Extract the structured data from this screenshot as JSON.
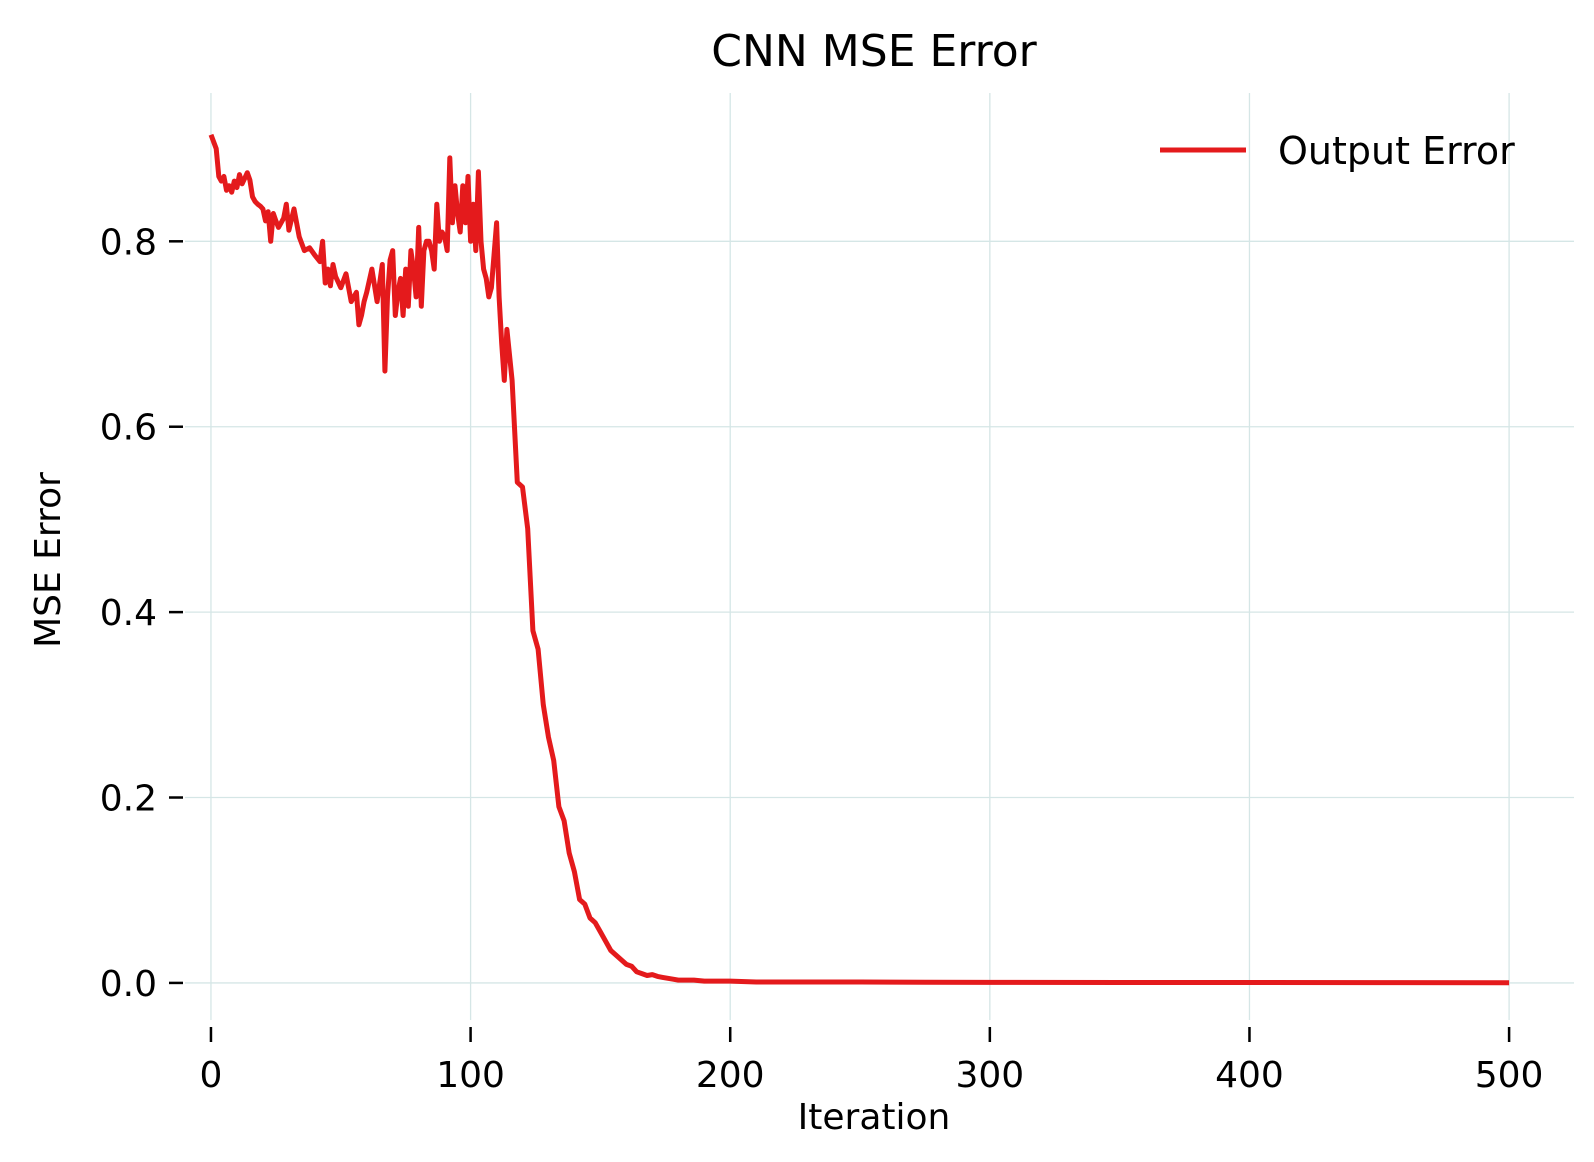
{
  "chart_data": {
    "type": "line",
    "title": "CNN MSE Error",
    "xlabel": "Iteration",
    "ylabel": "MSE Error",
    "xlim": [
      -10,
      525
    ],
    "ylim": [
      -0.04,
      0.96
    ],
    "xticks": [
      0,
      100,
      200,
      300,
      400,
      500
    ],
    "yticks": [
      0.0,
      0.2,
      0.4,
      0.6,
      0.8
    ],
    "ytick_labels": [
      "0.0",
      "0.2",
      "0.4",
      "0.6",
      "0.8"
    ],
    "grid": true,
    "legend": {
      "position": "top-right"
    },
    "series": [
      {
        "name": "Output Error",
        "color": "#e41a1c",
        "x": [
          0,
          2,
          3,
          4,
          5,
          6,
          7,
          8,
          9,
          10,
          11,
          12,
          13,
          14,
          15,
          16,
          17,
          18,
          19,
          20,
          21,
          22,
          23,
          24,
          25,
          26,
          27,
          28,
          29,
          30,
          32,
          34,
          36,
          38,
          40,
          42,
          43,
          44,
          45,
          46,
          47,
          48,
          50,
          52,
          54,
          56,
          57,
          58,
          59,
          60,
          62,
          64,
          66,
          67,
          68,
          69,
          70,
          71,
          72,
          73,
          74,
          75,
          76,
          77,
          78,
          79,
          80,
          81,
          82,
          83,
          84,
          85,
          86,
          87,
          88,
          89,
          90,
          91,
          92,
          93,
          94,
          95,
          96,
          97,
          98,
          99,
          100,
          101,
          102,
          103,
          104,
          105,
          106,
          107,
          108,
          110,
          111,
          112,
          113,
          114,
          116,
          118,
          120,
          122,
          124,
          126,
          128,
          130,
          132,
          134,
          136,
          138,
          140,
          142,
          144,
          146,
          148,
          150,
          152,
          154,
          156,
          158,
          160,
          162,
          164,
          166,
          168,
          170,
          172,
          174,
          176,
          178,
          180,
          182,
          184,
          186,
          190,
          195,
          200,
          210,
          220,
          230,
          240,
          250,
          275,
          300,
          350,
          400,
          450,
          500
        ],
        "y": [
          0.915,
          0.9,
          0.87,
          0.865,
          0.87,
          0.855,
          0.86,
          0.853,
          0.865,
          0.858,
          0.872,
          0.862,
          0.868,
          0.874,
          0.866,
          0.848,
          0.843,
          0.84,
          0.838,
          0.835,
          0.822,
          0.832,
          0.8,
          0.83,
          0.822,
          0.815,
          0.82,
          0.825,
          0.84,
          0.812,
          0.835,
          0.805,
          0.79,
          0.793,
          0.785,
          0.778,
          0.8,
          0.755,
          0.77,
          0.752,
          0.775,
          0.762,
          0.75,
          0.765,
          0.735,
          0.745,
          0.71,
          0.72,
          0.735,
          0.745,
          0.77,
          0.735,
          0.775,
          0.66,
          0.74,
          0.78,
          0.79,
          0.72,
          0.745,
          0.76,
          0.72,
          0.77,
          0.73,
          0.79,
          0.77,
          0.74,
          0.815,
          0.73,
          0.79,
          0.8,
          0.8,
          0.79,
          0.77,
          0.84,
          0.8,
          0.81,
          0.805,
          0.79,
          0.89,
          0.82,
          0.86,
          0.83,
          0.81,
          0.86,
          0.82,
          0.87,
          0.8,
          0.84,
          0.79,
          0.875,
          0.8,
          0.77,
          0.76,
          0.74,
          0.75,
          0.82,
          0.74,
          0.69,
          0.65,
          0.705,
          0.65,
          0.54,
          0.535,
          0.49,
          0.38,
          0.36,
          0.3,
          0.265,
          0.24,
          0.19,
          0.175,
          0.14,
          0.12,
          0.09,
          0.085,
          0.07,
          0.065,
          0.055,
          0.045,
          0.035,
          0.03,
          0.025,
          0.02,
          0.018,
          0.012,
          0.01,
          0.008,
          0.009,
          0.007,
          0.006,
          0.005,
          0.004,
          0.003,
          0.003,
          0.003,
          0.003,
          0.002,
          0.002,
          0.002,
          0.001,
          0.001,
          0.001,
          0.001,
          0.001,
          0.0008,
          0.0006,
          0.0005,
          0.0004,
          0.0003,
          0.0002
        ]
      }
    ]
  }
}
